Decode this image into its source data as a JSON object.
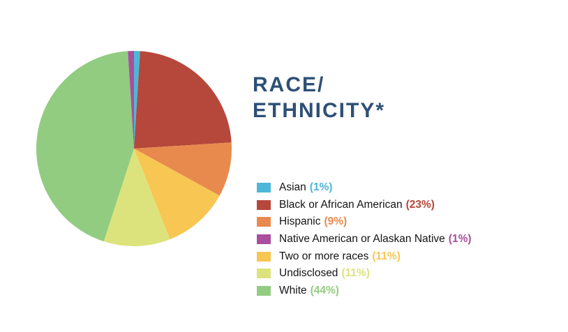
{
  "header": {
    "title_line1": "RACE/",
    "title_line2": "ETHNICITY*",
    "title_color": "#2d5076"
  },
  "chart_data": {
    "type": "pie",
    "title": "RACE/ETHNICITY*",
    "unit": "%",
    "legend_position": "right",
    "start_angle_deg": 0,
    "direction": "clockwise",
    "slices": [
      {
        "label": "Asian",
        "value": 1,
        "pct_text": "(1%)",
        "color": "#4cb7d7"
      },
      {
        "label": "Black or African American",
        "value": 23,
        "pct_text": "(23%)",
        "color": "#b5483b"
      },
      {
        "label": "Hispanic",
        "value": 9,
        "pct_text": "(9%)",
        "color": "#e88a4d"
      },
      {
        "label": "Native American or Alaskan Native",
        "value": 1,
        "pct_text": "(1%)",
        "color": "#a94f9d"
      },
      {
        "label": "Two or more races",
        "value": 11,
        "pct_text": "(11%)",
        "color": "#f8c653"
      },
      {
        "label": "Undisclosed",
        "value": 11,
        "pct_text": "(11%)",
        "color": "#dce37c"
      },
      {
        "label": "White",
        "value": 44,
        "pct_text": "(44%)",
        "color": "#92cc81"
      }
    ],
    "draw_order": [
      0,
      1,
      2,
      4,
      5,
      6,
      3
    ]
  }
}
